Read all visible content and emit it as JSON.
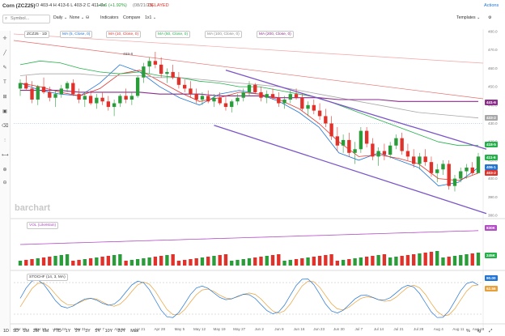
{
  "header": {
    "title": "Corn (ZCZ25)",
    "ohlc": "O 403-4 H 413-6 L 403-2 C 411-6s",
    "change": "+7-6 (+1.92%)",
    "time": "(08/21/25)",
    "status": "DELAYED",
    "actions_label": "Actions",
    "templates_label": "Templates",
    "symbol_placeholder": "Symbol..."
  },
  "toolbar": {
    "interval": "Daily",
    "draw_label": "None",
    "indicators_label": "Indicators",
    "compare_label": "Compare",
    "ratio_label": "1x1"
  },
  "legend": {
    "symbol_pill": "ZCZ25 · 1D",
    "ma5": "MA (5, Close, 0)",
    "ma10": "MA (10, Close, 0)",
    "ma50": "MA (50, Close, 0)",
    "ma100": "MA (100, Close, 0)",
    "ma200": "MA (200, Close, 0)",
    "vol": "VOL (LikeMain)",
    "stoch": "STOCHF (14, 3, MA)"
  },
  "watermark": "barchart",
  "colors": {
    "up": "#2a9d3a",
    "down": "#e0322a",
    "ma5": "#1f74d6",
    "ma10": "#e0322a",
    "ma50": "#24b14a",
    "ma100": "#a8a8a8",
    "ma200": "#8b2e8b",
    "channel": "#7b55c8",
    "vol_line": "#b24cc4",
    "stoch_k": "#1f74d6",
    "stoch_d": "#e8a038"
  },
  "price_axis": {
    "ticks": [
      "480.0",
      "470.0",
      "460.0",
      "450.0",
      "440.0",
      "430.0",
      "420.0",
      "410.0",
      "400.0",
      "390.0",
      "380.0"
    ],
    "tags": [
      {
        "label": "441-6",
        "color": "#8b2e8b"
      },
      {
        "label": "433-2",
        "color": "#a8a8a8"
      },
      {
        "label": "418-5",
        "color": "#24b14a"
      },
      {
        "label": "411-6",
        "color": "#24b14a"
      },
      {
        "label": "406-1",
        "color": "#1f74d6"
      },
      {
        "label": "403-2",
        "color": "#e0322a"
      }
    ]
  },
  "vol_axis": {
    "tags": [
      {
        "label": "830K",
        "color": "#b24cc4"
      },
      {
        "label": "245K",
        "color": "#24b14a"
      }
    ]
  },
  "stoch_axis": {
    "tags": [
      {
        "label": "90.00",
        "color": "#1f74d6"
      },
      {
        "label": "62.56",
        "color": "#e8a038"
      }
    ]
  },
  "annotations": {
    "high_label": "469-6"
  },
  "x_axis": {
    "labels": [
      "Mar 10",
      "Mar 17",
      "Mar 24",
      "Mar 31",
      "Apr 7",
      "Apr 14",
      "Apr 21",
      "Apr 28",
      "May 5",
      "May 12",
      "May 19",
      "May 27",
      "Jun 2",
      "Jun 9",
      "Jun 16",
      "Jun 23",
      "Jun 30",
      "Jul 7",
      "Jul 14",
      "Jul 21",
      "Jul 28",
      "Aug 4",
      "Aug 11",
      "Aug 18"
    ]
  },
  "footer": {
    "ranges": [
      "1D",
      "5D",
      "1M",
      "3M",
      "6M",
      "YTD",
      "1Y",
      "2Y",
      "3Y",
      "5Y",
      "10Y",
      "20Y",
      "Max"
    ]
  },
  "chart_data": {
    "type": "line",
    "x": [
      "Mar 10",
      "Mar 17",
      "Mar 24",
      "Mar 31",
      "Apr 7",
      "Apr 14",
      "Apr 21",
      "Apr 28",
      "May 5",
      "May 12",
      "May 19",
      "May 27",
      "Jun 2",
      "Jun 9",
      "Jun 16",
      "Jun 23",
      "Jun 30",
      "Jul 7",
      "Jul 14",
      "Jul 21",
      "Jul 28",
      "Aug 4",
      "Aug 11",
      "Aug 18"
    ],
    "ylim": [
      380,
      480
    ],
    "series": [
      {
        "name": "MA (5, Close, 0)",
        "values": [
          452,
          448,
          446,
          445,
          452,
          462,
          458,
          450,
          444,
          440,
          446,
          448,
          446,
          442,
          436,
          428,
          414,
          410,
          414,
          410,
          406,
          396,
          398,
          406
        ]
      },
      {
        "name": "MA (10, Close, 0)",
        "values": [
          452,
          450,
          447,
          445,
          449,
          457,
          459,
          453,
          447,
          442,
          444,
          447,
          446,
          443,
          438,
          430,
          420,
          412,
          413,
          411,
          408,
          400,
          399,
          403
        ]
      },
      {
        "name": "MA (50, Close, 0)",
        "values": [
          462,
          464,
          463,
          460,
          458,
          457,
          458,
          456,
          455,
          453,
          452,
          450,
          450,
          448,
          446,
          444,
          440,
          436,
          432,
          428,
          424,
          420,
          418,
          418
        ]
      },
      {
        "name": "MA (100, Close, 0)",
        "values": [
          456,
          457,
          457,
          457,
          456,
          456,
          456,
          455,
          455,
          454,
          453,
          452,
          451,
          450,
          448,
          446,
          444,
          442,
          440,
          438,
          436,
          435,
          434,
          433
        ]
      },
      {
        "name": "MA (200, Close, 0)",
        "values": [
          448,
          448,
          448,
          447,
          447,
          447,
          447,
          446,
          446,
          446,
          445,
          445,
          445,
          444,
          444,
          444,
          443,
          443,
          443,
          442,
          442,
          442,
          442,
          442
        ]
      }
    ],
    "candles": [
      [
        449,
        454,
        445,
        452
      ],
      [
        452,
        456,
        448,
        449
      ],
      [
        449,
        453,
        441,
        443
      ],
      [
        443,
        451,
        440,
        450
      ],
      [
        450,
        455,
        446,
        447
      ],
      [
        447,
        450,
        442,
        444
      ],
      [
        444,
        448,
        439,
        446
      ],
      [
        446,
        451,
        444,
        449
      ],
      [
        449,
        453,
        447,
        452
      ],
      [
        452,
        454,
        445,
        446
      ],
      [
        446,
        449,
        441,
        443
      ],
      [
        443,
        447,
        439,
        445
      ],
      [
        445,
        448,
        440,
        441
      ],
      [
        441,
        446,
        438,
        444
      ],
      [
        444,
        447,
        440,
        442
      ],
      [
        442,
        445,
        437,
        439
      ],
      [
        439,
        443,
        434,
        441
      ],
      [
        441,
        446,
        439,
        445
      ],
      [
        445,
        449,
        441,
        443
      ],
      [
        443,
        447,
        440,
        445
      ],
      [
        445,
        456,
        444,
        455
      ],
      [
        455,
        463,
        452,
        461
      ],
      [
        461,
        466,
        457,
        464
      ],
      [
        464,
        469,
        460,
        462
      ],
      [
        462,
        466,
        455,
        457
      ],
      [
        457,
        460,
        452,
        458
      ],
      [
        458,
        462,
        454,
        455
      ],
      [
        455,
        458,
        449,
        451
      ],
      [
        451,
        454,
        447,
        449
      ],
      [
        449,
        453,
        444,
        446
      ],
      [
        446,
        449,
        441,
        443
      ],
      [
        443,
        447,
        440,
        445
      ],
      [
        445,
        448,
        441,
        442
      ],
      [
        442,
        446,
        439,
        444
      ],
      [
        444,
        447,
        440,
        441
      ],
      [
        441,
        445,
        437,
        439
      ],
      [
        439,
        443,
        436,
        442
      ],
      [
        442,
        446,
        440,
        444
      ],
      [
        444,
        449,
        442,
        447
      ],
      [
        447,
        453,
        445,
        451
      ],
      [
        451,
        452,
        446,
        447
      ],
      [
        447,
        450,
        442,
        444
      ],
      [
        444,
        448,
        441,
        446
      ],
      [
        446,
        449,
        443,
        444
      ],
      [
        444,
        447,
        439,
        441
      ],
      [
        441,
        445,
        438,
        443
      ],
      [
        443,
        448,
        441,
        446
      ],
      [
        446,
        449,
        443,
        444
      ],
      [
        444,
        446,
        437,
        438
      ],
      [
        438,
        442,
        434,
        440
      ],
      [
        440,
        443,
        435,
        437
      ],
      [
        437,
        441,
        432,
        434
      ],
      [
        434,
        438,
        428,
        430
      ],
      [
        430,
        434,
        421,
        423
      ],
      [
        423,
        428,
        415,
        418
      ],
      [
        418,
        424,
        414,
        421
      ],
      [
        421,
        425,
        412,
        414
      ],
      [
        414,
        420,
        408,
        416
      ],
      [
        416,
        428,
        414,
        426
      ],
      [
        426,
        428,
        417,
        419
      ],
      [
        419,
        422,
        410,
        412
      ],
      [
        412,
        417,
        407,
        415
      ],
      [
        415,
        419,
        410,
        413
      ],
      [
        413,
        420,
        411,
        418
      ],
      [
        418,
        424,
        416,
        422
      ],
      [
        422,
        425,
        413,
        415
      ],
      [
        415,
        419,
        410,
        412
      ],
      [
        412,
        416,
        406,
        408
      ],
      [
        408,
        414,
        405,
        412
      ],
      [
        412,
        416,
        407,
        409
      ],
      [
        409,
        412,
        401,
        403
      ],
      [
        403,
        408,
        398,
        405
      ],
      [
        405,
        410,
        402,
        408
      ],
      [
        408,
        410,
        394,
        396
      ],
      [
        396,
        402,
        393,
        400
      ],
      [
        400,
        406,
        398,
        404
      ],
      [
        404,
        408,
        400,
        406
      ],
      [
        406,
        409,
        402,
        403
      ],
      [
        403,
        414,
        403,
        412
      ]
    ]
  }
}
